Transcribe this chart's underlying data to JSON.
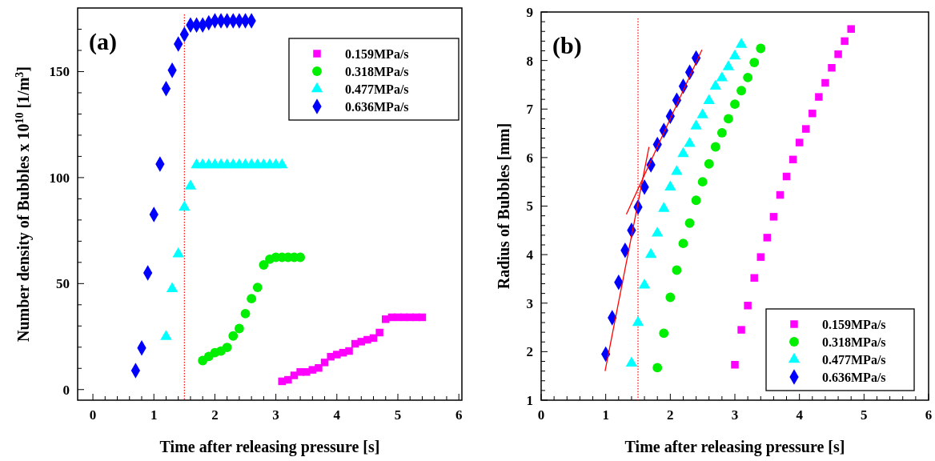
{
  "chart_data": [
    {
      "type": "scatter",
      "title": "(a)",
      "xlabel": "Time after releasing pressure [s]",
      "ylabel": "Number density of Bubbles x 10$^{10}$ [1/m$^{3}$]",
      "xlim": [
        -0.25,
        6.05
      ],
      "ylim": [
        -5,
        180
      ],
      "xticks": [
        0,
        {
          "value": 0.2,
          "label": null
        },
        {
          "value": 0.4,
          "label": null
        },
        {
          "value": 0.6,
          "label": null
        },
        {
          "value": 0.8,
          "label": null
        },
        1,
        {
          "value": 1.2,
          "label": null
        },
        {
          "value": 1.4,
          "label": null
        },
        {
          "value": 1.6,
          "label": null
        },
        {
          "value": 1.8,
          "label": null
        },
        2,
        {
          "value": 2.2,
          "label": null
        },
        {
          "value": 2.4,
          "label": null
        },
        {
          "value": 2.6,
          "label": null
        },
        {
          "value": 2.8,
          "label": null
        },
        3,
        {
          "value": 3.2,
          "label": null
        },
        {
          "value": 3.4,
          "label": null
        },
        {
          "value": 3.6,
          "label": null
        },
        {
          "value": 3.8,
          "label": null
        },
        4,
        {
          "value": 4.2,
          "label": null
        },
        {
          "value": 4.4,
          "label": null
        },
        {
          "value": 4.6,
          "label": null
        },
        {
          "value": 4.8,
          "label": null
        },
        5,
        {
          "value": 5.2,
          "label": null
        },
        {
          "value": 5.4,
          "label": null
        },
        {
          "value": 5.6,
          "label": null
        },
        {
          "value": 5.8,
          "label": null
        },
        6
      ],
      "yticks": [
        0,
        {
          "value": 10,
          "label": null
        },
        {
          "value": 20,
          "label": null
        },
        {
          "value": 30,
          "label": null
        },
        {
          "value": 40,
          "label": null
        },
        50,
        {
          "value": 60,
          "label": null
        },
        {
          "value": 70,
          "label": null
        },
        {
          "value": 80,
          "label": null
        },
        {
          "value": 90,
          "label": null
        },
        100,
        {
          "value": 110,
          "label": null
        },
        {
          "value": 120,
          "label": null
        },
        {
          "value": 130,
          "label": null
        },
        {
          "value": 140,
          "label": null
        },
        150,
        {
          "value": 160,
          "label": null
        },
        {
          "value": 170,
          "label": null
        }
      ],
      "grid": false,
      "legend": "top right",
      "ref_lines": [
        {
          "axis": "x",
          "value": 1.5,
          "color": "#ff0000",
          "line_style": "dotted"
        }
      ],
      "series": [
        {
          "name": "0.159MPa/s",
          "color": "#ff00ff",
          "marker": "square",
          "x": [
            3.1,
            3.2,
            3.3,
            3.4,
            3.5,
            3.6,
            3.7,
            3.8,
            3.9,
            4.0,
            4.1,
            4.2,
            4.3,
            4.4,
            4.5,
            4.6,
            4.7,
            4.8,
            4.9,
            5.0,
            5.1,
            5.2,
            5.3,
            5.4
          ],
          "values": [
            3.9,
            4.6,
            6.7,
            8.3,
            8.3,
            9.3,
            10.2,
            12.8,
            15.5,
            16.5,
            17.4,
            18.2,
            21.6,
            22.6,
            23.5,
            24.3,
            26.9,
            33.2,
            34.1,
            34.1,
            34.1,
            34.1,
            34.1,
            34.1
          ]
        },
        {
          "name": "0.318MPa/s",
          "color": "#00ee00",
          "marker": "circle",
          "x": [
            1.8,
            1.9,
            2.0,
            2.1,
            2.2,
            2.3,
            2.4,
            2.5,
            2.6,
            2.7,
            2.8,
            2.9,
            3.0,
            3.1,
            3.2,
            3.3,
            3.4
          ],
          "values": [
            13.7,
            15.6,
            17.4,
            18.2,
            19.9,
            25.3,
            28.8,
            35.8,
            42.9,
            48.2,
            58.8,
            61.5,
            62.4,
            62.4,
            62.4,
            62.4,
            62.4
          ]
        },
        {
          "name": "0.477MPa/s",
          "color": "#00ffff",
          "marker": "triangle",
          "x": [
            1.2,
            1.3,
            1.4,
            1.5,
            1.6,
            1.7,
            1.8,
            1.9,
            2.0,
            2.1,
            2.2,
            2.3,
            2.4,
            2.5,
            2.6,
            2.7,
            2.8,
            2.9,
            3.0,
            3.1
          ],
          "values": [
            25,
            47.5,
            64,
            86,
            96,
            106,
            106,
            106,
            106,
            106,
            106,
            106,
            106,
            106,
            106,
            106,
            106,
            106,
            106,
            106
          ]
        },
        {
          "name": "0.636MPa/s",
          "color": "#0000ff",
          "marker": "diamond",
          "x": [
            0.7,
            0.8,
            0.9,
            1.0,
            1.1,
            1.2,
            1.3,
            1.4,
            1.5,
            1.6,
            1.7,
            1.8,
            1.9,
            2.0,
            2.1,
            2.2,
            2.3,
            2.4,
            2.5,
            2.6
          ],
          "values": [
            9,
            19.6,
            55,
            82.6,
            106.4,
            142,
            150.6,
            163,
            167.5,
            172,
            172,
            172,
            173,
            174,
            174,
            174,
            174,
            174,
            174,
            174
          ]
        }
      ]
    },
    {
      "type": "scatter",
      "title": "(b)",
      "xlabel": "Time after releasing pressure [s]",
      "ylabel": "Radius of Bubbles [mm]",
      "xlim": [
        0,
        6
      ],
      "ylim": [
        1,
        9
      ],
      "xticks": [
        0,
        {
          "value": 0.2,
          "label": null
        },
        {
          "value": 0.4,
          "label": null
        },
        {
          "value": 0.6,
          "label": null
        },
        {
          "value": 0.8,
          "label": null
        },
        1,
        {
          "value": 1.2,
          "label": null
        },
        {
          "value": 1.4,
          "label": null
        },
        {
          "value": 1.6,
          "label": null
        },
        {
          "value": 1.8,
          "label": null
        },
        2,
        {
          "value": 2.2,
          "label": null
        },
        {
          "value": 2.4,
          "label": null
        },
        {
          "value": 2.6,
          "label": null
        },
        {
          "value": 2.8,
          "label": null
        },
        3,
        {
          "value": 3.2,
          "label": null
        },
        {
          "value": 3.4,
          "label": null
        },
        {
          "value": 3.6,
          "label": null
        },
        {
          "value": 3.8,
          "label": null
        },
        4,
        {
          "value": 4.2,
          "label": null
        },
        {
          "value": 4.4,
          "label": null
        },
        {
          "value": 4.6,
          "label": null
        },
        {
          "value": 4.8,
          "label": null
        },
        5,
        {
          "value": 5.2,
          "label": null
        },
        {
          "value": 5.4,
          "label": null
        },
        {
          "value": 5.6,
          "label": null
        },
        {
          "value": 5.8,
          "label": null
        },
        6
      ],
      "yticks": [
        1,
        {
          "value": 1.2,
          "label": null
        },
        {
          "value": 1.4,
          "label": null
        },
        {
          "value": 1.6,
          "label": null
        },
        {
          "value": 1.8,
          "label": null
        },
        2,
        {
          "value": 2.2,
          "label": null
        },
        {
          "value": 2.4,
          "label": null
        },
        {
          "value": 2.6,
          "label": null
        },
        {
          "value": 2.8,
          "label": null
        },
        3,
        {
          "value": 3.2,
          "label": null
        },
        {
          "value": 3.4,
          "label": null
        },
        {
          "value": 3.6,
          "label": null
        },
        {
          "value": 3.8,
          "label": null
        },
        4,
        {
          "value": 4.2,
          "label": null
        },
        {
          "value": 4.4,
          "label": null
        },
        {
          "value": 4.6,
          "label": null
        },
        {
          "value": 4.8,
          "label": null
        },
        5,
        {
          "value": 5.2,
          "label": null
        },
        {
          "value": 5.4,
          "label": null
        },
        {
          "value": 5.6,
          "label": null
        },
        {
          "value": 5.8,
          "label": null
        },
        6,
        {
          "value": 6.2,
          "label": null
        },
        {
          "value": 6.4,
          "label": null
        },
        {
          "value": 6.6,
          "label": null
        },
        {
          "value": 6.8,
          "label": null
        },
        7,
        {
          "value": 7.2,
          "label": null
        },
        {
          "value": 7.4,
          "label": null
        },
        {
          "value": 7.6,
          "label": null
        },
        {
          "value": 7.8,
          "label": null
        },
        8,
        {
          "value": 8.2,
          "label": null
        },
        {
          "value": 8.4,
          "label": null
        },
        {
          "value": 8.6,
          "label": null
        },
        {
          "value": 8.8,
          "label": null
        },
        9
      ],
      "grid": false,
      "legend": "bottom right",
      "ref_lines": [
        {
          "axis": "x",
          "value": 1.5,
          "color": "#ff0000",
          "line_style": "dotted"
        }
      ],
      "series": [
        {
          "name": "0.159MPa/s",
          "color": "#ff00ff",
          "marker": "square",
          "x": [
            3.0,
            3.1,
            3.2,
            3.3,
            3.4,
            3.5,
            3.6,
            3.7,
            3.8,
            3.9,
            4.0,
            4.1,
            4.2,
            4.3,
            4.4,
            4.5,
            4.6,
            4.7,
            4.8
          ],
          "values": [
            1.73,
            2.45,
            2.95,
            3.52,
            3.95,
            4.35,
            4.78,
            5.23,
            5.61,
            5.96,
            6.31,
            6.59,
            6.91,
            7.25,
            7.54,
            7.85,
            8.13,
            8.4,
            8.65
          ]
        },
        {
          "name": "0.318MPa/s",
          "color": "#00ee00",
          "marker": "circle",
          "x": [
            1.8,
            1.9,
            2.0,
            2.1,
            2.2,
            2.3,
            2.4,
            2.5,
            2.6,
            2.7,
            2.8,
            2.9,
            3.0,
            3.1,
            3.2,
            3.3,
            3.4
          ],
          "values": [
            1.67,
            2.38,
            3.12,
            3.68,
            4.23,
            4.65,
            5.12,
            5.5,
            5.87,
            6.22,
            6.51,
            6.8,
            7.1,
            7.38,
            7.65,
            7.96,
            8.25
          ]
        },
        {
          "name": "0.477MPa/s",
          "color": "#00ffff",
          "marker": "triangle",
          "x": [
            1.4,
            1.5,
            1.6,
            1.7,
            1.8,
            1.9,
            2.0,
            2.1,
            2.2,
            2.3,
            2.4,
            2.5,
            2.6,
            2.7,
            2.8,
            2.9,
            3.0,
            3.1
          ],
          "values": [
            1.76,
            2.6,
            3.37,
            4.0,
            4.44,
            4.95,
            5.39,
            5.71,
            6.08,
            6.29,
            6.65,
            6.88,
            7.17,
            7.47,
            7.64,
            7.87,
            8.09,
            8.33
          ]
        },
        {
          "name": "0.636MPa/s",
          "color": "#0000ff",
          "marker": "diamond",
          "x": [
            1.0,
            1.1,
            1.2,
            1.3,
            1.4,
            1.5,
            1.6,
            1.7,
            1.8,
            1.9,
            2.0,
            2.1,
            2.2,
            2.3,
            2.4
          ],
          "values": [
            1.95,
            2.7,
            3.43,
            4.09,
            4.5,
            4.98,
            5.39,
            5.85,
            6.27,
            6.56,
            6.85,
            7.18,
            7.47,
            7.76,
            8.05
          ]
        },
        {
          "type": "line",
          "color": "#ff0000",
          "marker": "none",
          "x": [
            0.99,
            1.67
          ],
          "values": [
            1.6,
            6.22
          ]
        },
        {
          "type": "line",
          "color": "#ff0000",
          "marker": "none",
          "x": [
            1.32,
            2.49
          ],
          "values": [
            4.83,
            8.22
          ]
        }
      ]
    }
  ]
}
